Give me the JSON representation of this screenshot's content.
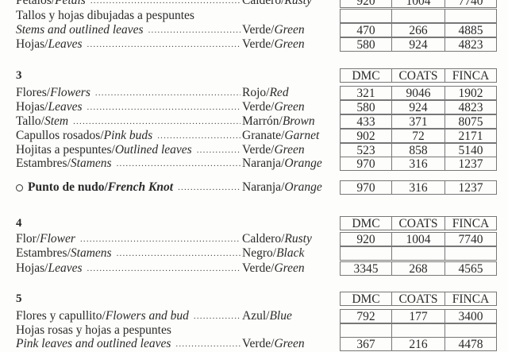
{
  "columns": [
    "DMC",
    "COATS",
    "FINCA"
  ],
  "lines": [
    {
      "type": "row",
      "es": "Pétalos",
      "en": "Petals",
      "color_es": "Caldero",
      "color_en": "Rusty",
      "values": [
        "920",
        "1004",
        "7740"
      ]
    },
    {
      "type": "row",
      "es": "Tallos y hojas dibujadas a pespuntes",
      "en": "",
      "nodots": true,
      "color_es": "",
      "color_en": "",
      "values": [
        "",
        "",
        ""
      ]
    },
    {
      "type": "row",
      "es": "",
      "en": "Stems and outlined leaves",
      "color_es": "Verde",
      "color_en": "Green",
      "values": [
        "470",
        "266",
        "4885"
      ]
    },
    {
      "type": "row",
      "es": "Hojas",
      "en": "Leaves",
      "color_es": "Verde",
      "color_en": "Green",
      "values": [
        "580",
        "924",
        "4823"
      ]
    },
    {
      "type": "header",
      "number": "3"
    },
    {
      "type": "row",
      "es": "Flores",
      "en": "Flowers",
      "color_es": "Rojo",
      "color_en": "Red",
      "values": [
        "321",
        "9046",
        "1902"
      ]
    },
    {
      "type": "row",
      "es": "Hojas",
      "en": "Leaves",
      "color_es": "Verde",
      "color_en": "Green",
      "values": [
        "580",
        "924",
        "4823"
      ]
    },
    {
      "type": "row",
      "es": "Tallo",
      "en": "Stem",
      "color_es": "Marrón",
      "color_en": "Brown",
      "values": [
        "433",
        "371",
        "8075"
      ]
    },
    {
      "type": "row",
      "es": "Capullos rosados",
      "en": "Pink buds",
      "color_es": "Granate",
      "color_en": "Garnet",
      "values": [
        "902",
        "72",
        "2171"
      ]
    },
    {
      "type": "row",
      "es": "Hojitas a pespuntes",
      "en": "Outlined leaves",
      "color_es": "Verde",
      "color_en": "Green",
      "values": [
        "523",
        "858",
        "5140"
      ]
    },
    {
      "type": "row",
      "es": "Estambres",
      "en": "Stamens",
      "color_es": "Naranja",
      "color_en": "Orange",
      "values": [
        "970",
        "316",
        "1237"
      ]
    },
    {
      "type": "knot",
      "es": "Punto de nudo",
      "en": "French Knot",
      "color_es": "Naranja",
      "color_en": "Orange",
      "values": [
        "970",
        "316",
        "1237"
      ]
    },
    {
      "type": "header",
      "number": "4"
    },
    {
      "type": "row",
      "es": "Flor",
      "en": "Flower",
      "color_es": "Caldero",
      "color_en": "Rusty",
      "values": [
        "920",
        "1004",
        "7740"
      ]
    },
    {
      "type": "row",
      "es": "Estambres",
      "en": "Stamens",
      "color_es": "Negro",
      "color_en": "Black",
      "values": [
        "",
        "",
        ""
      ]
    },
    {
      "type": "row",
      "es": "Hojas",
      "en": "Leaves",
      "color_es": "Verde",
      "color_en": "Green",
      "values": [
        "3345",
        "268",
        "4565"
      ]
    },
    {
      "type": "header",
      "number": "5"
    },
    {
      "type": "row",
      "es": "Flores y capullito",
      "en": "Flowers and bud",
      "color_es": "Azul",
      "color_en": "Blue",
      "values": [
        "792",
        "177",
        "3400"
      ]
    },
    {
      "type": "row",
      "es": "Hojas rosas y hojas a pespuntes",
      "en": "",
      "nodots": true,
      "color_es": "",
      "color_en": "",
      "values": [
        "",
        "",
        ""
      ]
    },
    {
      "type": "row",
      "es": "",
      "en": "Pink leaves and outlined leaves",
      "color_es": "Verde",
      "color_en": "Green",
      "values": [
        "367",
        "216",
        "4478"
      ]
    }
  ]
}
